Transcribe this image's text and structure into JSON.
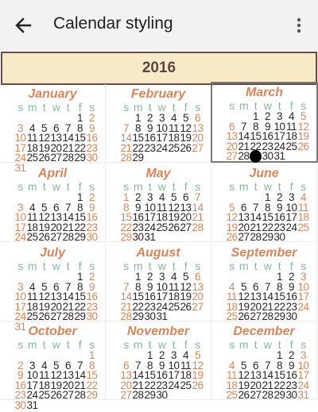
{
  "toolbar": {
    "title": "Calendar styling",
    "back_icon": "arrow-left-icon",
    "more_icon": "more-vert-icon"
  },
  "year": "2016",
  "weekday_headers": [
    "s",
    "m",
    "t",
    "w",
    "t",
    "f",
    "s"
  ],
  "selected_month": 2,
  "today": {
    "month": 2,
    "day": 29
  },
  "months": [
    {
      "name": "January",
      "weeks": [
        [
          "",
          "",
          "",
          "",
          "",
          "1",
          "2"
        ],
        [
          "3",
          "4",
          "5",
          "6",
          "7",
          "8",
          "9"
        ],
        [
          "10",
          "11",
          "12",
          "13",
          "14",
          "15",
          "16"
        ],
        [
          "17",
          "18",
          "19",
          "20",
          "21",
          "22",
          "23"
        ],
        [
          "24",
          "25",
          "26",
          "27",
          "28",
          "29",
          "30"
        ],
        [
          "31",
          "",
          "",
          "",
          "",
          "",
          ""
        ]
      ]
    },
    {
      "name": "February",
      "weeks": [
        [
          "",
          "1",
          "2",
          "3",
          "4",
          "5",
          "6"
        ],
        [
          "7",
          "8",
          "9",
          "10",
          "11",
          "12",
          "13"
        ],
        [
          "14",
          "15",
          "16",
          "17",
          "18",
          "19",
          "20"
        ],
        [
          "21",
          "22",
          "23",
          "24",
          "25",
          "26",
          "27"
        ],
        [
          "28",
          "29",
          "",
          "",
          "",
          "",
          ""
        ]
      ]
    },
    {
      "name": "March",
      "weeks": [
        [
          "",
          "",
          "1",
          "2",
          "3",
          "4",
          "5"
        ],
        [
          "6",
          "7",
          "8",
          "9",
          "10",
          "11",
          "12"
        ],
        [
          "13",
          "14",
          "15",
          "16",
          "17",
          "18",
          "19"
        ],
        [
          "20",
          "21",
          "22",
          "23",
          "24",
          "25",
          "26"
        ],
        [
          "27",
          "28",
          "29",
          "30",
          "31",
          "",
          ""
        ]
      ]
    },
    {
      "name": "April",
      "weeks": [
        [
          "",
          "",
          "",
          "",
          "",
          "1",
          "2"
        ],
        [
          "3",
          "4",
          "5",
          "6",
          "7",
          "8",
          "9"
        ],
        [
          "10",
          "11",
          "12",
          "13",
          "14",
          "15",
          "16"
        ],
        [
          "17",
          "18",
          "19",
          "20",
          "21",
          "22",
          "23"
        ],
        [
          "24",
          "25",
          "26",
          "27",
          "28",
          "29",
          "30"
        ]
      ]
    },
    {
      "name": "May",
      "weeks": [
        [
          "1",
          "2",
          "3",
          "4",
          "5",
          "6",
          "7"
        ],
        [
          "8",
          "9",
          "10",
          "11",
          "12",
          "13",
          "14"
        ],
        [
          "15",
          "16",
          "17",
          "18",
          "19",
          "20",
          "21"
        ],
        [
          "22",
          "23",
          "24",
          "25",
          "26",
          "27",
          "28"
        ],
        [
          "29",
          "30",
          "31",
          "",
          "",
          "",
          ""
        ]
      ]
    },
    {
      "name": "June",
      "weeks": [
        [
          "",
          "",
          "",
          "1",
          "2",
          "3",
          "4"
        ],
        [
          "5",
          "6",
          "7",
          "8",
          "9",
          "10",
          "11"
        ],
        [
          "12",
          "13",
          "14",
          "15",
          "16",
          "17",
          "18"
        ],
        [
          "19",
          "20",
          "21",
          "22",
          "23",
          "24",
          "25"
        ],
        [
          "26",
          "27",
          "28",
          "29",
          "30",
          "",
          ""
        ]
      ]
    },
    {
      "name": "July",
      "weeks": [
        [
          "",
          "",
          "",
          "",
          "",
          "1",
          "2"
        ],
        [
          "3",
          "4",
          "5",
          "6",
          "7",
          "8",
          "9"
        ],
        [
          "10",
          "11",
          "12",
          "13",
          "14",
          "15",
          "16"
        ],
        [
          "17",
          "18",
          "19",
          "20",
          "21",
          "22",
          "23"
        ],
        [
          "24",
          "25",
          "26",
          "27",
          "28",
          "29",
          "30"
        ],
        [
          "31",
          "",
          "",
          "",
          "",
          "",
          ""
        ]
      ]
    },
    {
      "name": "August",
      "weeks": [
        [
          "",
          "1",
          "2",
          "3",
          "4",
          "5",
          "6"
        ],
        [
          "7",
          "8",
          "9",
          "10",
          "11",
          "12",
          "13"
        ],
        [
          "14",
          "15",
          "16",
          "17",
          "18",
          "19",
          "20"
        ],
        [
          "21",
          "22",
          "23",
          "24",
          "25",
          "26",
          "27"
        ],
        [
          "28",
          "29",
          "30",
          "31",
          "",
          "",
          ""
        ]
      ]
    },
    {
      "name": "September",
      "weeks": [
        [
          "",
          "",
          "",
          "",
          "1",
          "2",
          "3"
        ],
        [
          "4",
          "5",
          "6",
          "7",
          "8",
          "9",
          "10"
        ],
        [
          "11",
          "12",
          "13",
          "14",
          "15",
          "16",
          "17"
        ],
        [
          "18",
          "19",
          "20",
          "21",
          "22",
          "23",
          "24"
        ],
        [
          "25",
          "26",
          "27",
          "28",
          "29",
          "30",
          ""
        ]
      ]
    },
    {
      "name": "October",
      "weeks": [
        [
          "",
          "",
          "",
          "",
          "",
          "",
          "1"
        ],
        [
          "2",
          "3",
          "4",
          "5",
          "6",
          "7",
          "8"
        ],
        [
          "9",
          "10",
          "11",
          "12",
          "13",
          "14",
          "15"
        ],
        [
          "16",
          "17",
          "18",
          "19",
          "20",
          "21",
          "22"
        ],
        [
          "23",
          "24",
          "25",
          "26",
          "27",
          "28",
          "29"
        ],
        [
          "30",
          "31",
          "",
          "",
          "",
          "",
          ""
        ]
      ]
    },
    {
      "name": "November",
      "weeks": [
        [
          "",
          "",
          "1",
          "2",
          "3",
          "4",
          "5"
        ],
        [
          "6",
          "7",
          "8",
          "9",
          "10",
          "11",
          "12"
        ],
        [
          "13",
          "14",
          "15",
          "16",
          "17",
          "18",
          "19"
        ],
        [
          "20",
          "21",
          "22",
          "23",
          "24",
          "25",
          "26"
        ],
        [
          "27",
          "28",
          "29",
          "30",
          "",
          "",
          ""
        ]
      ]
    },
    {
      "name": "December",
      "weeks": [
        [
          "",
          "",
          "",
          "",
          "1",
          "2",
          "3"
        ],
        [
          "4",
          "5",
          "6",
          "7",
          "8",
          "9",
          "10"
        ],
        [
          "11",
          "12",
          "13",
          "14",
          "15",
          "16",
          "17"
        ],
        [
          "18",
          "19",
          "20",
          "21",
          "22",
          "23",
          "24"
        ],
        [
          "25",
          "26",
          "27",
          "28",
          "29",
          "30",
          "31"
        ]
      ]
    }
  ]
}
